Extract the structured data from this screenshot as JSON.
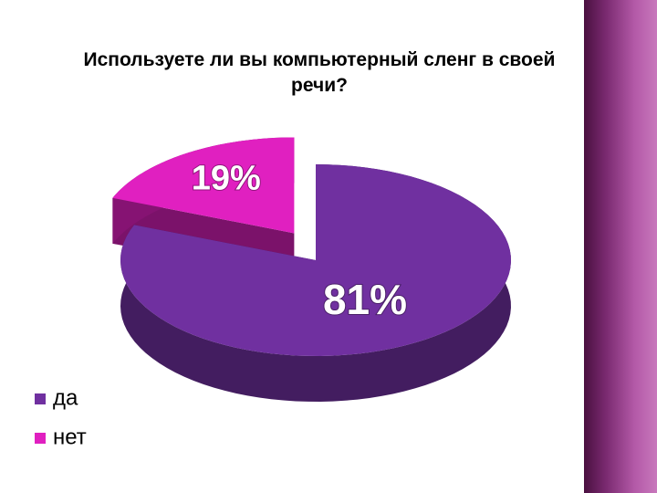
{
  "chart_data": {
    "type": "pie3d",
    "title": "Используете ли вы компьютерный сленг в своей  речи?",
    "categories": [
      "да",
      "нет"
    ],
    "values": [
      81,
      19
    ],
    "value_labels": [
      "81%",
      "19%"
    ],
    "colors": [
      "#7030a0",
      "#e020c0"
    ],
    "legend": "bottom-left"
  }
}
